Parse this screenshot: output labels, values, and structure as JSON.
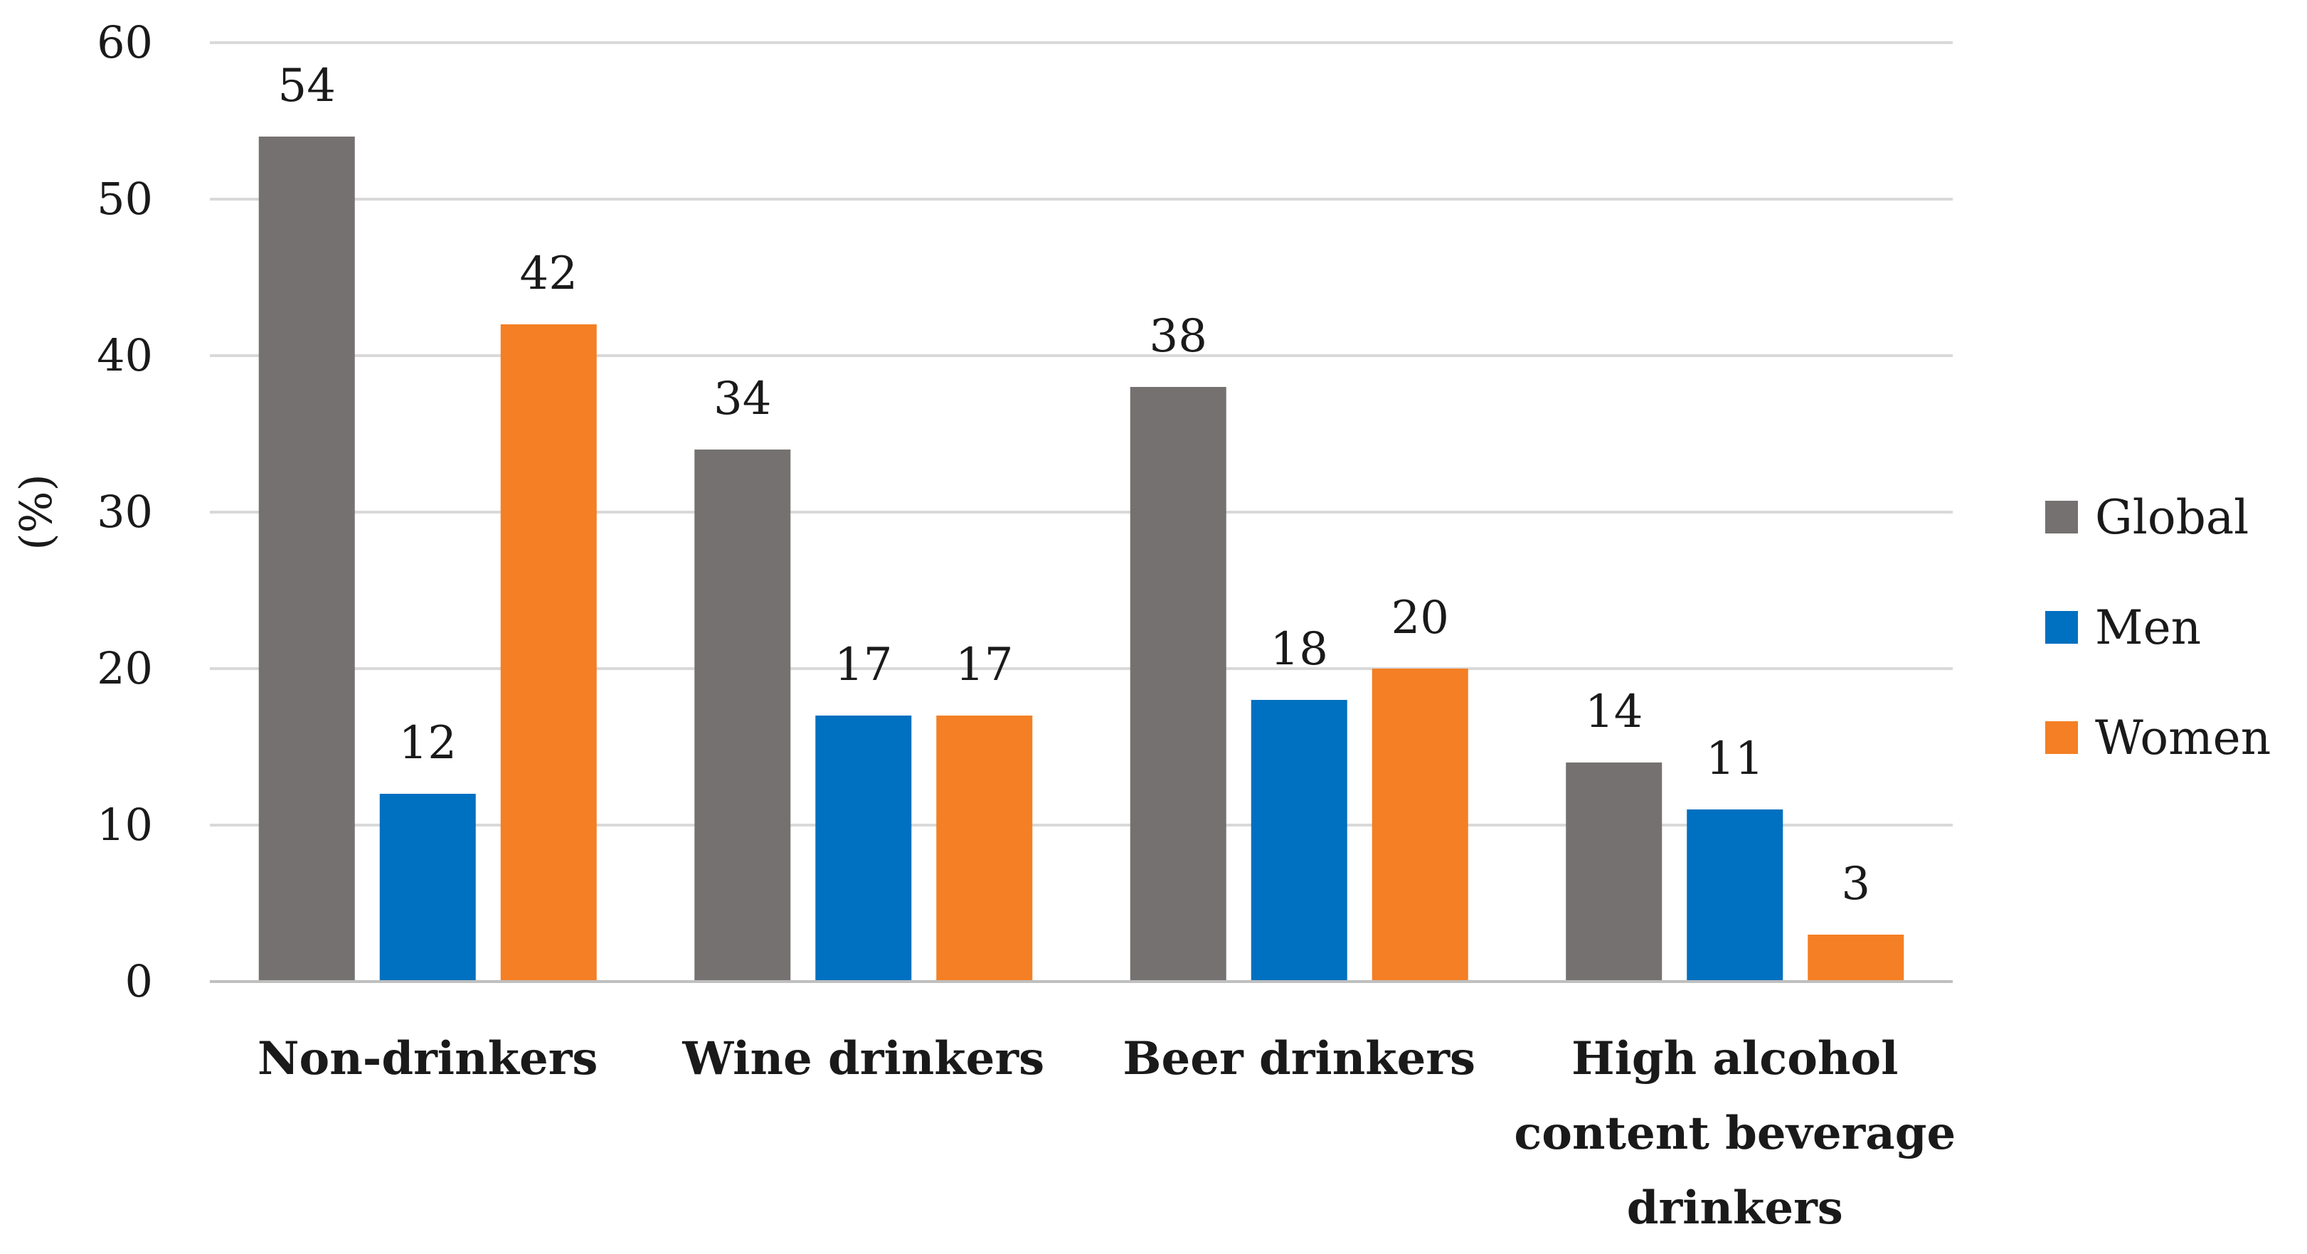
{
  "chart_data": {
    "type": "bar",
    "title": "",
    "xlabel": "",
    "ylabel": "(%)",
    "ylim": [
      0,
      60
    ],
    "yticks": [
      0,
      10,
      20,
      30,
      40,
      50,
      60
    ],
    "grid": true,
    "legend_position": "right",
    "categories": [
      [
        "Non-drinkers"
      ],
      [
        "Wine drinkers"
      ],
      [
        "Beer drinkers"
      ],
      [
        "High alcohol",
        "content beverage",
        "drinkers"
      ]
    ],
    "series": [
      {
        "name": "Global",
        "color": "#767171",
        "values": [
          54,
          34,
          38,
          14
        ]
      },
      {
        "name": "Men",
        "color": "#0070c0",
        "values": [
          12,
          17,
          18,
          11
        ]
      },
      {
        "name": "Women",
        "color": "#f47f24",
        "values": [
          42,
          17,
          20,
          3
        ]
      }
    ]
  }
}
